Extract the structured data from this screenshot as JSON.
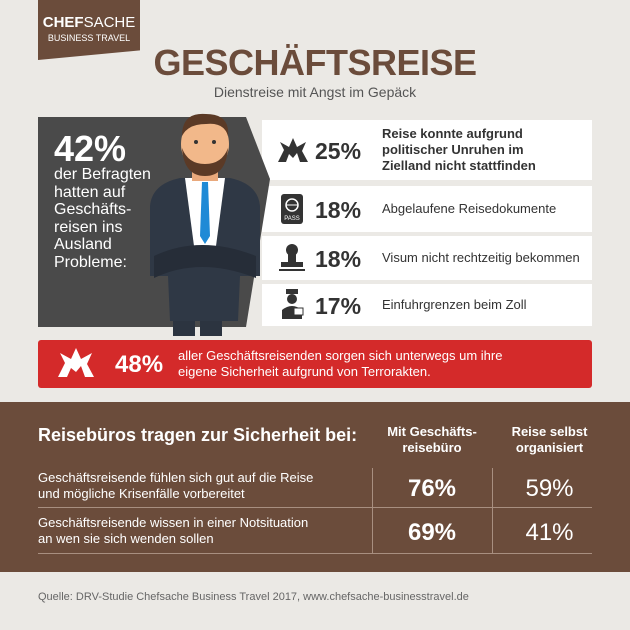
{
  "logo": {
    "brand_bold": "CHEF",
    "brand_light": "SACHE",
    "tagline": "BUSINESS TRAVEL"
  },
  "header": {
    "title": "GESCHÄFTSREISE",
    "subtitle": "Dienstreise mit Angst im Gepäck"
  },
  "summary": {
    "value": "42%",
    "lines": [
      "der Befragten",
      "hatten auf",
      "Geschäfts-",
      "reisen ins",
      "Ausland",
      "Probleme:"
    ]
  },
  "problems": [
    {
      "value": "25%",
      "lines": [
        "Reise konnte aufgrund",
        "politischer Unruhen im",
        "Zielland nicht stattfinden"
      ]
    },
    {
      "value": "18%",
      "lines": [
        "Abgelaufene Reisedokumente"
      ]
    },
    {
      "value": "18%",
      "lines": [
        "Visum nicht rechtzeitig bekommen"
      ]
    },
    {
      "value": "17%",
      "lines": [
        "Einfuhrgrenzen beim Zoll"
      ]
    }
  ],
  "alert": {
    "value": "48%",
    "lines": [
      "aller Geschäftsreisenden sorgen sich unterwegs um ihre",
      "eigene Sicherheit aufgrund von Terrorakten."
    ]
  },
  "table": {
    "title": "Reisebüros tragen zur Sicherheit bei:",
    "columns": [
      [
        "Mit Geschäfts-",
        "reisebüro"
      ],
      [
        "Reise selbst",
        "organisiert"
      ]
    ],
    "rows": [
      {
        "lines": [
          "Geschäftsreisende fühlen sich gut auf die Reise",
          "und mögliche Krisenfälle vorbereitet"
        ],
        "values": [
          "76%",
          "59%"
        ]
      },
      {
        "lines": [
          "Geschäftsreisende wissen in einer Notsituation",
          "an wen sie sich wenden sollen"
        ],
        "values": [
          "69%",
          "41%"
        ]
      }
    ]
  },
  "source": "Quelle: DRV-Studie Chefsache Business Travel 2017, www.chefsache-businesstravel.de"
}
